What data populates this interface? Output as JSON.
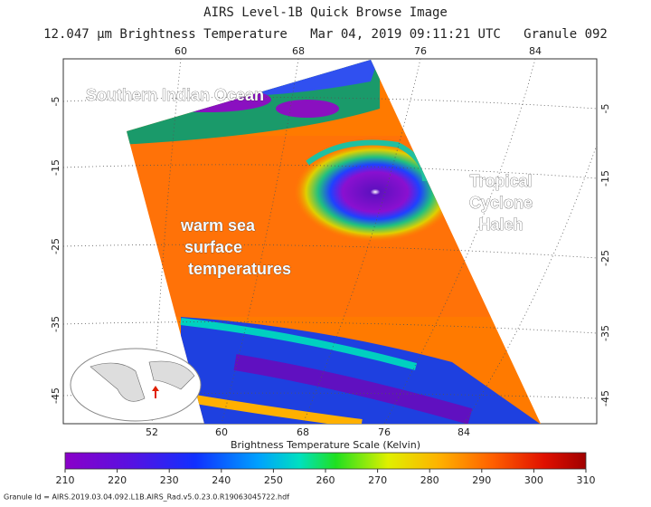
{
  "header": {
    "title": "AIRS Level-1B Quick Browse Image",
    "subtitle": "12.047 μm Brightness Temperature   Mar 04, 2019 09:11:21 UTC   Granule 092"
  },
  "map": {
    "top_lon_labels": [
      "60",
      "68",
      "76",
      "84"
    ],
    "bottom_lon_labels": [
      "52",
      "60",
      "68",
      "76",
      "84"
    ],
    "left_lat_labels": [
      "-5",
      "-15",
      "-25",
      "-35",
      "-45"
    ],
    "right_lat_labels": [
      "-5",
      "-15",
      "-25",
      "-35",
      "-45"
    ],
    "annotations": [
      {
        "lines": [
          "Southern Indian Ocean"
        ]
      },
      {
        "lines": [
          "Tropical",
          "Cyclone",
          "Haleh"
        ]
      },
      {
        "lines": [
          "warm sea",
          "surface",
          "temperatures"
        ]
      }
    ]
  },
  "colorbar": {
    "title": "Brightness Temperature Scale (Kelvin)",
    "range": [
      210,
      310
    ],
    "ticks": [
      210,
      220,
      230,
      240,
      250,
      260,
      270,
      280,
      290,
      300,
      310
    ]
  },
  "footer": "Granule Id = AIRS.2019.03.04.092.L1B.AIRS_Rad.v5.0.23.0.R19063045722.hdf"
}
